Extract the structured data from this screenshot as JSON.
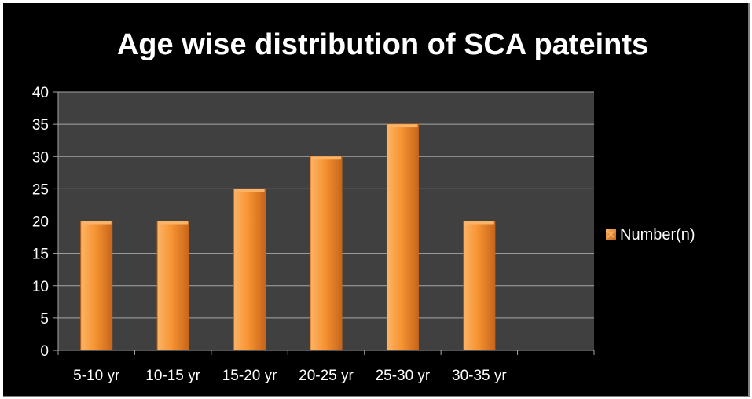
{
  "chart_data": {
    "type": "bar",
    "title": "Age wise distribution of SCA pateints",
    "categories": [
      "5-10 yr",
      "10-15 yr",
      "15-20 yr",
      "20-25 yr",
      "25-30 yr",
      "30-35 yr"
    ],
    "series": [
      {
        "name": "Number(n)",
        "values": [
          20,
          20,
          25,
          30,
          35,
          20
        ]
      }
    ],
    "ylim": [
      0,
      40
    ],
    "yticks": [
      0,
      5,
      10,
      15,
      20,
      25,
      30,
      35,
      40
    ],
    "grid": true,
    "legend_position": "right",
    "colors": {
      "background": "#000000",
      "plot_area": "#404040",
      "gridline": "#a6a6a6",
      "bar_light": "#fbb467",
      "bar_mid": "#f79433",
      "bar_dark": "#c7661a",
      "text": "#ffffff"
    }
  }
}
